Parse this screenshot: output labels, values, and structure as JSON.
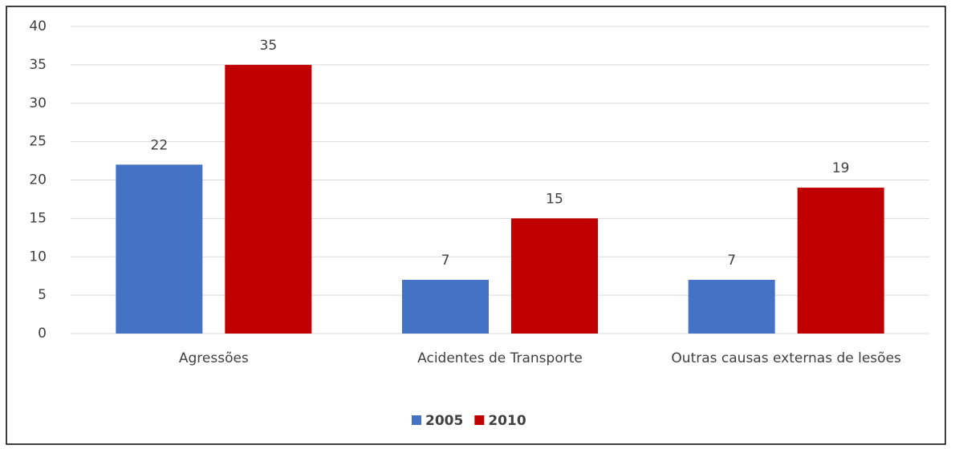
{
  "chart_data": {
    "type": "bar",
    "categories": [
      "Agressões",
      "Acidentes de Transporte",
      "Outras causas externas de lesões"
    ],
    "series": [
      {
        "name": "2005",
        "color": "#4472c4",
        "values": [
          22,
          7,
          7
        ]
      },
      {
        "name": "2010",
        "color": "#c00000",
        "values": [
          35,
          15,
          19
        ]
      }
    ],
    "ylim": [
      0,
      40
    ],
    "yticks": [
      0,
      5,
      10,
      15,
      20,
      25,
      30,
      35,
      40
    ],
    "grid": true,
    "legend": "bottom"
  }
}
